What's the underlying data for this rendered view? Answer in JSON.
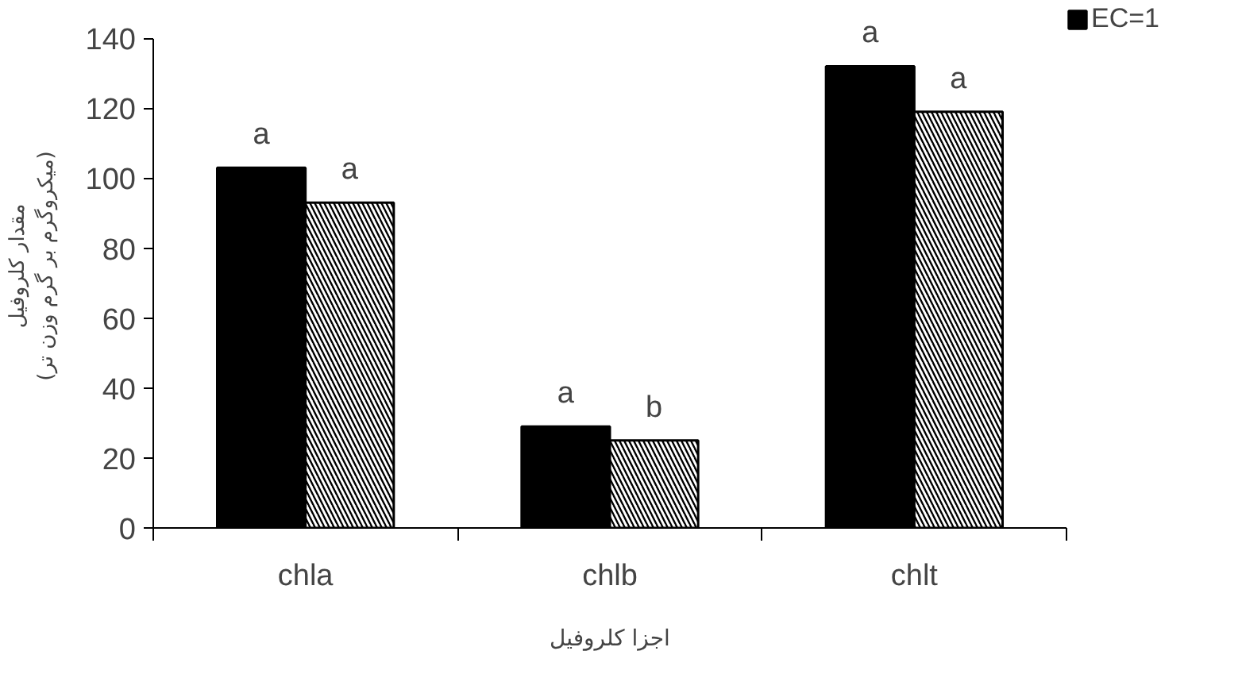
{
  "chart_data": {
    "type": "bar",
    "categories": [
      "chla",
      "chlb",
      "chlt"
    ],
    "series": [
      {
        "name": "EC=1",
        "color": "#000000",
        "values": [
          103,
          29,
          132
        ]
      },
      {
        "color": "#ffffff",
        "values": [
          93,
          25,
          119
        ]
      }
    ],
    "ylim": [
      0,
      140
    ],
    "yticks": [
      0,
      20,
      40,
      60,
      80,
      100,
      120,
      140
    ],
    "xlabel": "اجزا کلروفیل",
    "ylabel": "مقدار کلروفیل\n(میکروگرم بر گرم وزن تر)",
    "grid": false,
    "legend": "top right",
    "annotations": [
      {
        "text": "a",
        "x": "chla",
        "y": 103
      },
      {
        "text": "a",
        "x": "chla",
        "y": 93
      },
      {
        "text": "a",
        "x": "chlb",
        "y": 29
      },
      {
        "text": "b",
        "x": "chlb",
        "y": 25
      },
      {
        "text": "a",
        "x": "chlt",
        "y": 132
      },
      {
        "text": "a",
        "x": "chlt",
        "y": 119
      }
    ]
  }
}
